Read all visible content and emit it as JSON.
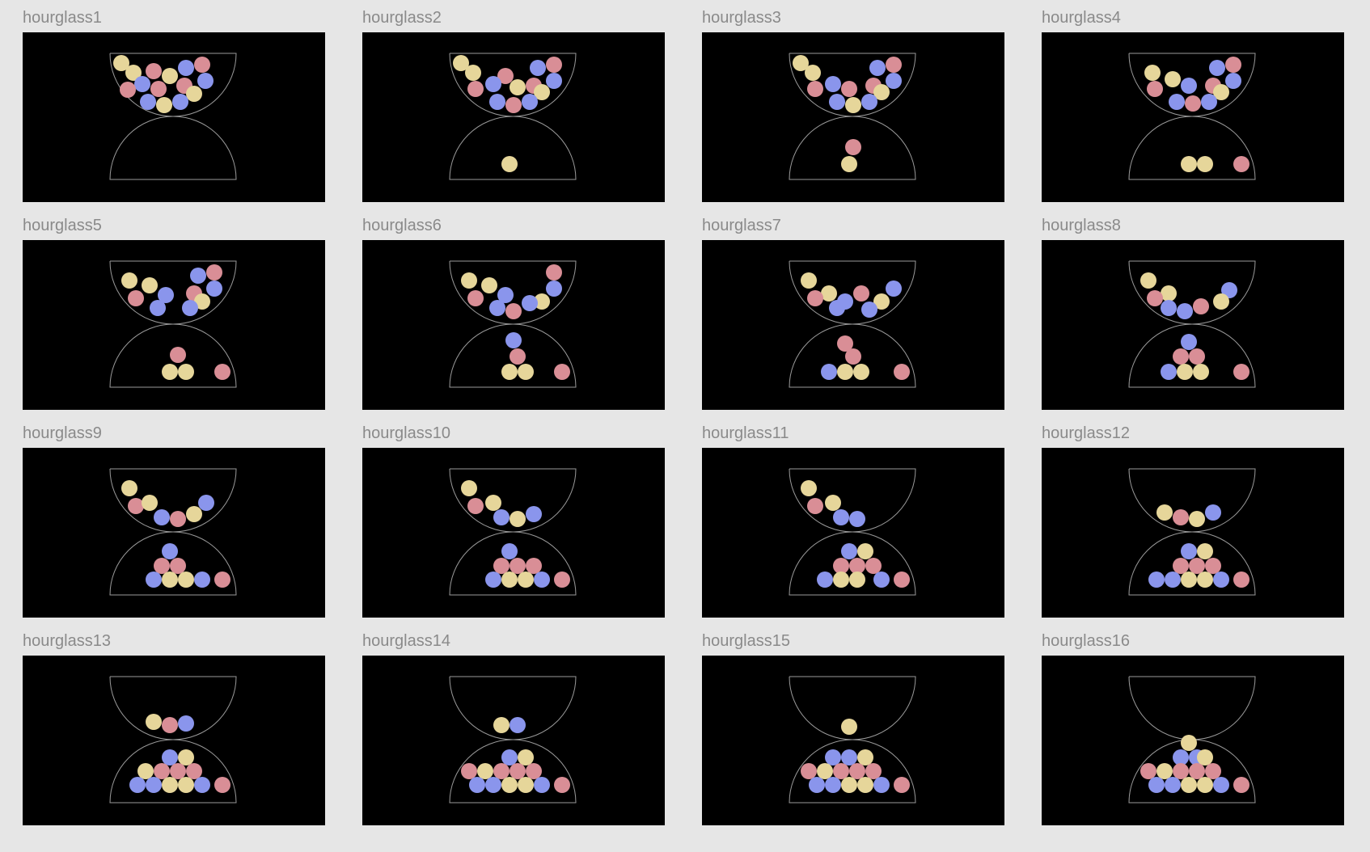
{
  "colors": {
    "background": "#e6e6e6",
    "frame": "#000000",
    "label": "#8a8a8a",
    "outline": "#9a9a9a",
    "y": "#e6d69a",
    "p": "#d98e96",
    "b": "#8a95ec"
  },
  "frames": [
    {
      "label": "hourglass1",
      "balls": [
        [
          "y",
          122,
          38
        ],
        [
          "y",
          137,
          50
        ],
        [
          "p",
          162,
          48
        ],
        [
          "y",
          182,
          54
        ],
        [
          "b",
          202,
          44
        ],
        [
          "p",
          222,
          40
        ],
        [
          "b",
          148,
          64
        ],
        [
          "p",
          130,
          71
        ],
        [
          "p",
          168,
          70
        ],
        [
          "p",
          200,
          66
        ],
        [
          "b",
          226,
          60
        ],
        [
          "y",
          212,
          76
        ],
        [
          "b",
          155,
          86
        ],
        [
          "y",
          175,
          90
        ],
        [
          "b",
          195,
          86
        ]
      ]
    },
    {
      "label": "hourglass2",
      "balls": [
        [
          "y",
          122,
          38
        ],
        [
          "y",
          137,
          50
        ],
        [
          "p",
          177,
          54
        ],
        [
          "b",
          217,
          44
        ],
        [
          "p",
          237,
          40
        ],
        [
          "b",
          162,
          64
        ],
        [
          "p",
          140,
          70
        ],
        [
          "y",
          192,
          68
        ],
        [
          "p",
          212,
          66
        ],
        [
          "b",
          237,
          60
        ],
        [
          "y",
          222,
          74
        ],
        [
          "b",
          167,
          86
        ],
        [
          "p",
          187,
          90
        ],
        [
          "b",
          207,
          86
        ],
        [
          "y",
          182,
          163
        ]
      ]
    },
    {
      "label": "hourglass3",
      "balls": [
        [
          "y",
          122,
          38
        ],
        [
          "y",
          137,
          50
        ],
        [
          "b",
          217,
          44
        ],
        [
          "p",
          237,
          40
        ],
        [
          "b",
          162,
          64
        ],
        [
          "p",
          140,
          70
        ],
        [
          "p",
          182,
          70
        ],
        [
          "p",
          212,
          66
        ],
        [
          "b",
          237,
          60
        ],
        [
          "y",
          222,
          74
        ],
        [
          "b",
          167,
          86
        ],
        [
          "y",
          187,
          90
        ],
        [
          "b",
          207,
          86
        ],
        [
          "p",
          187,
          142
        ],
        [
          "y",
          182,
          163
        ]
      ]
    },
    {
      "label": "hourglass4",
      "balls": [
        [
          "y",
          137,
          50
        ],
        [
          "y",
          162,
          58
        ],
        [
          "b",
          217,
          44
        ],
        [
          "p",
          237,
          40
        ],
        [
          "b",
          182,
          66
        ],
        [
          "p",
          140,
          70
        ],
        [
          "p",
          212,
          66
        ],
        [
          "b",
          237,
          60
        ],
        [
          "y",
          222,
          74
        ],
        [
          "b",
          167,
          86
        ],
        [
          "p",
          187,
          88
        ],
        [
          "b",
          207,
          86
        ],
        [
          "y",
          182,
          163
        ],
        [
          "y",
          202,
          163
        ],
        [
          "p",
          247,
          163
        ]
      ]
    },
    {
      "label": "hourglass5",
      "balls": [
        [
          "y",
          132,
          50
        ],
        [
          "y",
          157,
          56
        ],
        [
          "b",
          217,
          44
        ],
        [
          "p",
          237,
          40
        ],
        [
          "b",
          177,
          68
        ],
        [
          "p",
          140,
          72
        ],
        [
          "p",
          212,
          66
        ],
        [
          "b",
          237,
          60
        ],
        [
          "y",
          222,
          76
        ],
        [
          "b",
          167,
          84
        ],
        [
          "b",
          207,
          84
        ],
        [
          "p",
          192,
          142
        ],
        [
          "y",
          182,
          163
        ],
        [
          "y",
          202,
          163
        ],
        [
          "p",
          247,
          163
        ]
      ]
    },
    {
      "label": "hourglass6",
      "balls": [
        [
          "y",
          132,
          50
        ],
        [
          "y",
          157,
          56
        ],
        [
          "p",
          237,
          40
        ],
        [
          "b",
          177,
          68
        ],
        [
          "p",
          140,
          72
        ],
        [
          "b",
          237,
          60
        ],
        [
          "y",
          222,
          76
        ],
        [
          "b",
          167,
          84
        ],
        [
          "p",
          187,
          88
        ],
        [
          "b",
          207,
          78
        ],
        [
          "b",
          187,
          124
        ],
        [
          "p",
          192,
          144
        ],
        [
          "y",
          182,
          163
        ],
        [
          "y",
          202,
          163
        ],
        [
          "p",
          247,
          163
        ]
      ]
    },
    {
      "label": "hourglass7",
      "balls": [
        [
          "y",
          132,
          50
        ],
        [
          "y",
          157,
          66
        ],
        [
          "p",
          140,
          72
        ],
        [
          "b",
          237,
          60
        ],
        [
          "y",
          222,
          76
        ],
        [
          "b",
          167,
          84
        ],
        [
          "b",
          177,
          76
        ],
        [
          "p",
          197,
          66
        ],
        [
          "b",
          207,
          86
        ],
        [
          "p",
          177,
          128
        ],
        [
          "p",
          187,
          144
        ],
        [
          "b",
          157,
          163
        ],
        [
          "y",
          177,
          163
        ],
        [
          "y",
          197,
          163
        ],
        [
          "p",
          247,
          163
        ]
      ]
    },
    {
      "label": "hourglass8",
      "balls": [
        [
          "y",
          132,
          50
        ],
        [
          "y",
          157,
          66
        ],
        [
          "p",
          140,
          72
        ],
        [
          "b",
          232,
          62
        ],
        [
          "y",
          222,
          76
        ],
        [
          "b",
          157,
          84
        ],
        [
          "b",
          177,
          88
        ],
        [
          "p",
          197,
          82
        ],
        [
          "b",
          182,
          126
        ],
        [
          "p",
          172,
          144
        ],
        [
          "p",
          192,
          144
        ],
        [
          "b",
          157,
          163
        ],
        [
          "y",
          177,
          163
        ],
        [
          "y",
          197,
          163
        ],
        [
          "p",
          247,
          163
        ]
      ]
    },
    {
      "label": "hourglass9",
      "balls": [
        [
          "y",
          132,
          50
        ],
        [
          "p",
          140,
          72
        ],
        [
          "y",
          157,
          68
        ],
        [
          "b",
          227,
          68
        ],
        [
          "y",
          212,
          82
        ],
        [
          "b",
          172,
          86
        ],
        [
          "p",
          192,
          88
        ],
        [
          "b",
          182,
          128
        ],
        [
          "p",
          172,
          146
        ],
        [
          "p",
          192,
          146
        ],
        [
          "b",
          162,
          163
        ],
        [
          "y",
          182,
          163
        ],
        [
          "y",
          202,
          163
        ],
        [
          "b",
          222,
          163
        ],
        [
          "p",
          247,
          163
        ]
      ]
    },
    {
      "label": "hourglass10",
      "balls": [
        [
          "y",
          132,
          50
        ],
        [
          "p",
          140,
          72
        ],
        [
          "y",
          162,
          68
        ],
        [
          "b",
          212,
          82
        ],
        [
          "b",
          172,
          86
        ],
        [
          "y",
          192,
          88
        ],
        [
          "b",
          182,
          128
        ],
        [
          "p",
          172,
          146
        ],
        [
          "p",
          192,
          146
        ],
        [
          "p",
          212,
          146
        ],
        [
          "b",
          162,
          163
        ],
        [
          "y",
          182,
          163
        ],
        [
          "y",
          202,
          163
        ],
        [
          "b",
          222,
          163
        ],
        [
          "p",
          247,
          163
        ]
      ]
    },
    {
      "label": "hourglass11",
      "balls": [
        [
          "y",
          132,
          50
        ],
        [
          "p",
          140,
          72
        ],
        [
          "y",
          162,
          68
        ],
        [
          "b",
          172,
          86
        ],
        [
          "b",
          192,
          88
        ],
        [
          "b",
          182,
          128
        ],
        [
          "y",
          202,
          128
        ],
        [
          "p",
          172,
          146
        ],
        [
          "p",
          192,
          146
        ],
        [
          "p",
          212,
          146
        ],
        [
          "b",
          152,
          163
        ],
        [
          "y",
          172,
          163
        ],
        [
          "y",
          192,
          163
        ],
        [
          "b",
          222,
          163
        ],
        [
          "p",
          247,
          163
        ]
      ]
    },
    {
      "label": "hourglass12",
      "balls": [
        [
          "y",
          152,
          80
        ],
        [
          "p",
          172,
          86
        ],
        [
          "y",
          192,
          88
        ],
        [
          "b",
          212,
          80
        ],
        [
          "b",
          182,
          128
        ],
        [
          "y",
          202,
          128
        ],
        [
          "p",
          172,
          146
        ],
        [
          "p",
          192,
          146
        ],
        [
          "p",
          212,
          146
        ],
        [
          "b",
          142,
          163
        ],
        [
          "b",
          162,
          163
        ],
        [
          "y",
          182,
          163
        ],
        [
          "y",
          202,
          163
        ],
        [
          "b",
          222,
          163
        ],
        [
          "p",
          247,
          163
        ]
      ]
    },
    {
      "label": "hourglass13",
      "balls": [
        [
          "y",
          162,
          82
        ],
        [
          "p",
          182,
          86
        ],
        [
          "b",
          202,
          84
        ],
        [
          "b",
          182,
          126
        ],
        [
          "y",
          202,
          126
        ],
        [
          "y",
          152,
          143
        ],
        [
          "p",
          172,
          143
        ],
        [
          "p",
          192,
          143
        ],
        [
          "p",
          212,
          143
        ],
        [
          "b",
          142,
          160
        ],
        [
          "b",
          162,
          160
        ],
        [
          "y",
          182,
          160
        ],
        [
          "y",
          202,
          160
        ],
        [
          "b",
          222,
          160
        ],
        [
          "p",
          247,
          160
        ]
      ]
    },
    {
      "label": "hourglass14",
      "balls": [
        [
          "y",
          172,
          86
        ],
        [
          "b",
          192,
          86
        ],
        [
          "b",
          182,
          126
        ],
        [
          "y",
          202,
          126
        ],
        [
          "p",
          132,
          143
        ],
        [
          "y",
          152,
          143
        ],
        [
          "p",
          172,
          143
        ],
        [
          "p",
          192,
          143
        ],
        [
          "p",
          212,
          143
        ],
        [
          "b",
          142,
          160
        ],
        [
          "b",
          162,
          160
        ],
        [
          "y",
          182,
          160
        ],
        [
          "y",
          202,
          160
        ],
        [
          "b",
          222,
          160
        ],
        [
          "p",
          247,
          160
        ]
      ]
    },
    {
      "label": "hourglass15",
      "balls": [
        [
          "y",
          182,
          88
        ],
        [
          "b",
          162,
          126
        ],
        [
          "b",
          182,
          126
        ],
        [
          "y",
          202,
          126
        ],
        [
          "p",
          132,
          143
        ],
        [
          "y",
          152,
          143
        ],
        [
          "p",
          172,
          143
        ],
        [
          "p",
          192,
          143
        ],
        [
          "p",
          212,
          143
        ],
        [
          "b",
          142,
          160
        ],
        [
          "b",
          162,
          160
        ],
        [
          "y",
          182,
          160
        ],
        [
          "y",
          202,
          160
        ],
        [
          "b",
          222,
          160
        ],
        [
          "p",
          247,
          160
        ]
      ]
    },
    {
      "label": "hourglass16",
      "balls": [
        [
          "y",
          182,
          108
        ],
        [
          "b",
          172,
          126
        ],
        [
          "b",
          192,
          126
        ],
        [
          "y",
          202,
          126
        ],
        [
          "p",
          132,
          143
        ],
        [
          "y",
          152,
          143
        ],
        [
          "p",
          172,
          143
        ],
        [
          "p",
          192,
          143
        ],
        [
          "p",
          212,
          143
        ],
        [
          "b",
          142,
          160
        ],
        [
          "b",
          162,
          160
        ],
        [
          "y",
          182,
          160
        ],
        [
          "y",
          202,
          160
        ],
        [
          "b",
          222,
          160
        ],
        [
          "p",
          247,
          160
        ]
      ]
    }
  ]
}
